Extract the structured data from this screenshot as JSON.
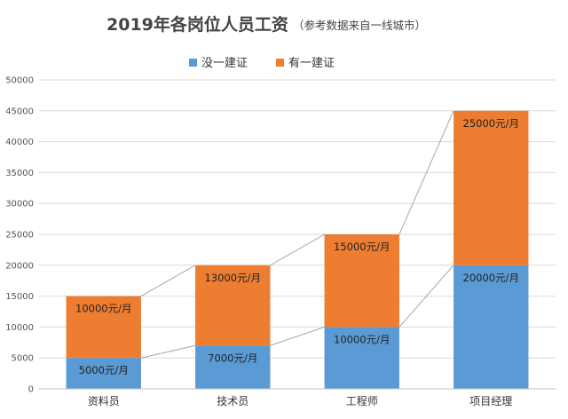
{
  "chart_data": {
    "type": "bar",
    "stacked": true,
    "title": "2019年各岗位人员工资",
    "subtitle": "（参考数据来自一线城市）",
    "categories": [
      "资料员",
      "技术员",
      "工程师",
      "项目经理"
    ],
    "series": [
      {
        "name": "没一建证",
        "color": "#5b9bd5",
        "values": [
          5000,
          7000,
          10000,
          20000
        ],
        "labels": [
          "5000元/月",
          "7000元/月",
          "10000元/月",
          "20000元/月"
        ]
      },
      {
        "name": "有一建证",
        "color": "#ed7d31",
        "values": [
          10000,
          13000,
          15000,
          25000
        ],
        "labels": [
          "10000元/月",
          "13000元/月",
          "15000元/月",
          "25000元/月"
        ]
      }
    ],
    "ylim": [
      0,
      50000
    ],
    "yticks": [
      "0",
      "5000",
      "10000",
      "15000",
      "20000",
      "25000",
      "30000",
      "35000",
      "40000",
      "45000",
      "50000"
    ],
    "grid": true,
    "series_lines": true,
    "legend_position": "top"
  }
}
